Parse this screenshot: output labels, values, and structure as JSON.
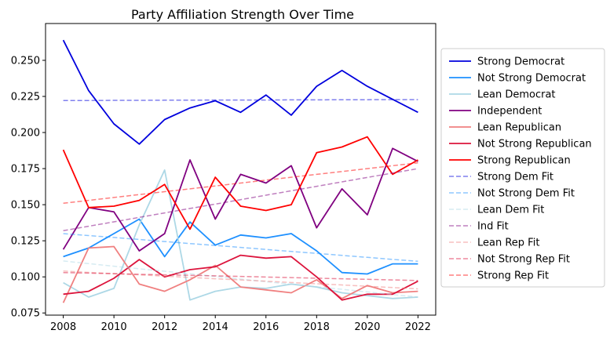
{
  "chart_data": {
    "type": "line",
    "title": "Party Affiliation Strength Over Time",
    "xlabel": "",
    "ylabel": "",
    "xlim": [
      2007.3,
      2022.7
    ],
    "ylim": [
      0.0735,
      0.2755
    ],
    "xticks": [
      2008,
      2010,
      2012,
      2014,
      2016,
      2018,
      2020,
      2022
    ],
    "yticks": [
      0.075,
      0.1,
      0.125,
      0.15,
      0.175,
      0.2,
      0.225,
      0.25
    ],
    "ytick_labels": [
      "0.075",
      "0.100",
      "0.125",
      "0.150",
      "0.175",
      "0.200",
      "0.225",
      "0.250"
    ],
    "grid": false,
    "legend_position": "right",
    "x": [
      2008,
      2009,
      2010,
      2011,
      2012,
      2013,
      2014,
      2015,
      2016,
      2017,
      2018,
      2019,
      2020,
      2021,
      2022
    ],
    "series": [
      {
        "name": "Strong Democrat",
        "color": "#0000dd",
        "style": "solid",
        "values": [
          0.264,
          0.229,
          0.206,
          0.192,
          0.209,
          0.217,
          0.222,
          0.214,
          0.226,
          0.212,
          0.232,
          0.243,
          0.232,
          0.223,
          0.214
        ]
      },
      {
        "name": "Not Strong Democrat",
        "color": "#1e90ff",
        "style": "solid",
        "values": [
          0.114,
          0.12,
          0.13,
          0.14,
          0.114,
          0.138,
          0.122,
          0.129,
          0.127,
          0.13,
          0.118,
          0.103,
          0.102,
          0.109,
          0.109
        ]
      },
      {
        "name": "Lean Democrat",
        "color": "#add8e6",
        "style": "solid",
        "values": [
          0.096,
          0.086,
          0.092,
          0.136,
          0.174,
          0.084,
          0.09,
          0.093,
          0.092,
          0.095,
          0.093,
          0.089,
          0.087,
          0.085,
          0.086
        ]
      },
      {
        "name": "Independent",
        "color": "#800080",
        "style": "solid",
        "values": [
          0.119,
          0.148,
          0.145,
          0.118,
          0.13,
          0.181,
          0.14,
          0.171,
          0.165,
          0.177,
          0.134,
          0.161,
          0.143,
          0.189,
          0.18
        ]
      },
      {
        "name": "Lean Republican",
        "color": "#f08080",
        "style": "solid",
        "values": [
          0.082,
          0.12,
          0.121,
          0.095,
          0.09,
          0.098,
          0.108,
          0.093,
          0.091,
          0.089,
          0.098,
          0.085,
          0.094,
          0.089,
          0.09
        ]
      },
      {
        "name": "Not Strong Republican",
        "color": "#dc143c",
        "style": "solid",
        "values": [
          0.088,
          0.09,
          0.099,
          0.112,
          0.1,
          0.105,
          0.107,
          0.115,
          0.113,
          0.114,
          0.1,
          0.084,
          0.088,
          0.088,
          0.097
        ]
      },
      {
        "name": "Strong Republican",
        "color": "#ff0000",
        "style": "solid",
        "values": [
          0.188,
          0.148,
          0.149,
          0.153,
          0.164,
          0.133,
          0.169,
          0.149,
          0.146,
          0.15,
          0.186,
          0.19,
          0.197,
          0.171,
          0.181
        ]
      },
      {
        "name": "Strong Dem Fit",
        "color": "#0000dd",
        "style": "dashed",
        "opacity": 0.5,
        "values": [
          0.2222,
          0.2222,
          0.2223,
          0.2223,
          0.2224,
          0.2224,
          0.2225,
          0.2225,
          0.2225,
          0.2226,
          0.2226,
          0.2227,
          0.2227,
          0.2228,
          0.2228
        ]
      },
      {
        "name": "Not Strong Dem Fit",
        "color": "#1e90ff",
        "style": "dashed",
        "opacity": 0.5,
        "values": [
          0.13,
          0.1286,
          0.1273,
          0.1259,
          0.1245,
          0.1231,
          0.1218,
          0.1204,
          0.119,
          0.1176,
          0.1163,
          0.1149,
          0.1135,
          0.1121,
          0.1108
        ]
      },
      {
        "name": "Lean Dem Fit",
        "color": "#add8e6",
        "style": "dashed",
        "opacity": 0.5,
        "values": [
          0.111,
          0.1092,
          0.1074,
          0.1056,
          0.1039,
          0.1021,
          0.1003,
          0.0985,
          0.0967,
          0.0949,
          0.0931,
          0.0914,
          0.0896,
          0.0878,
          0.086
        ]
      },
      {
        "name": "Ind Fit",
        "color": "#800080",
        "style": "dashed",
        "opacity": 0.5,
        "values": [
          0.132,
          0.1351,
          0.1381,
          0.1412,
          0.1443,
          0.1474,
          0.1504,
          0.1535,
          0.1566,
          0.1596,
          0.1627,
          0.1658,
          0.1689,
          0.1719,
          0.175
        ]
      },
      {
        "name": "Lean Rep Fit",
        "color": "#f08080",
        "style": "dashed",
        "opacity": 0.5,
        "values": [
          0.104,
          0.1031,
          0.1022,
          0.1014,
          0.1005,
          0.0996,
          0.0987,
          0.0979,
          0.097,
          0.0961,
          0.0952,
          0.0944,
          0.0935,
          0.0926,
          0.0917
        ]
      },
      {
        "name": "Not Strong Rep Fit",
        "color": "#dc143c",
        "style": "dashed",
        "opacity": 0.5,
        "values": [
          0.103,
          0.1026,
          0.1022,
          0.1018,
          0.1014,
          0.1011,
          0.1007,
          0.1003,
          0.0999,
          0.0995,
          0.0991,
          0.0987,
          0.0983,
          0.0979,
          0.0975
        ]
      },
      {
        "name": "Strong Rep Fit",
        "color": "#ff0000",
        "style": "dashed",
        "opacity": 0.5,
        "values": [
          0.151,
          0.153,
          0.155,
          0.157,
          0.159,
          0.161,
          0.163,
          0.165,
          0.167,
          0.169,
          0.171,
          0.173,
          0.175,
          0.177,
          0.179
        ]
      }
    ]
  }
}
